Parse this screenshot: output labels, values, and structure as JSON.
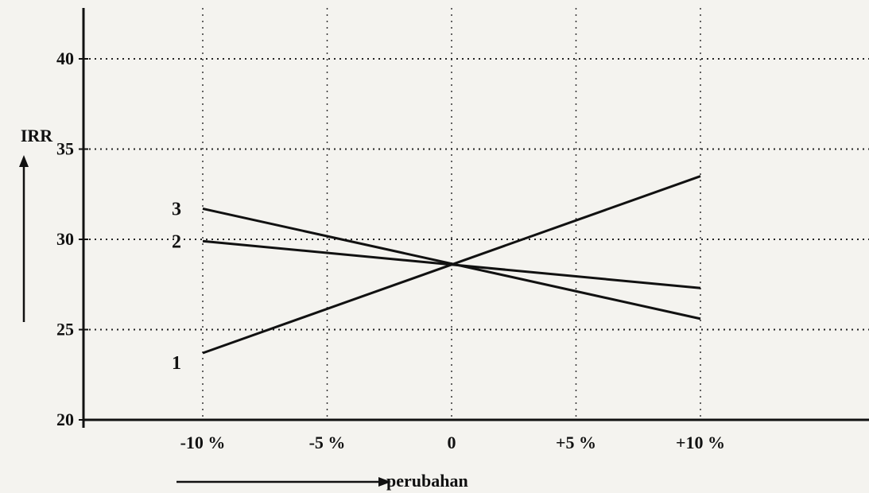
{
  "chart_data": {
    "type": "line",
    "title": "",
    "ylabel": "IRR",
    "xlabel": "perubahan",
    "categories": [
      "-10 %",
      "-5 %",
      "0",
      "+5 %",
      "+10 %"
    ],
    "x": [
      -10,
      -5,
      0,
      5,
      10
    ],
    "ylim": [
      20,
      40
    ],
    "yticks": [
      20,
      25,
      30,
      35,
      40
    ],
    "grid": true,
    "series": [
      {
        "name": "1",
        "x": [
          -10,
          10
        ],
        "values": [
          23.7,
          33.5
        ]
      },
      {
        "name": "2",
        "x": [
          -10,
          10
        ],
        "values": [
          29.9,
          27.3
        ]
      },
      {
        "name": "3",
        "x": [
          -10,
          10
        ],
        "values": [
          31.7,
          25.6
        ]
      }
    ]
  }
}
